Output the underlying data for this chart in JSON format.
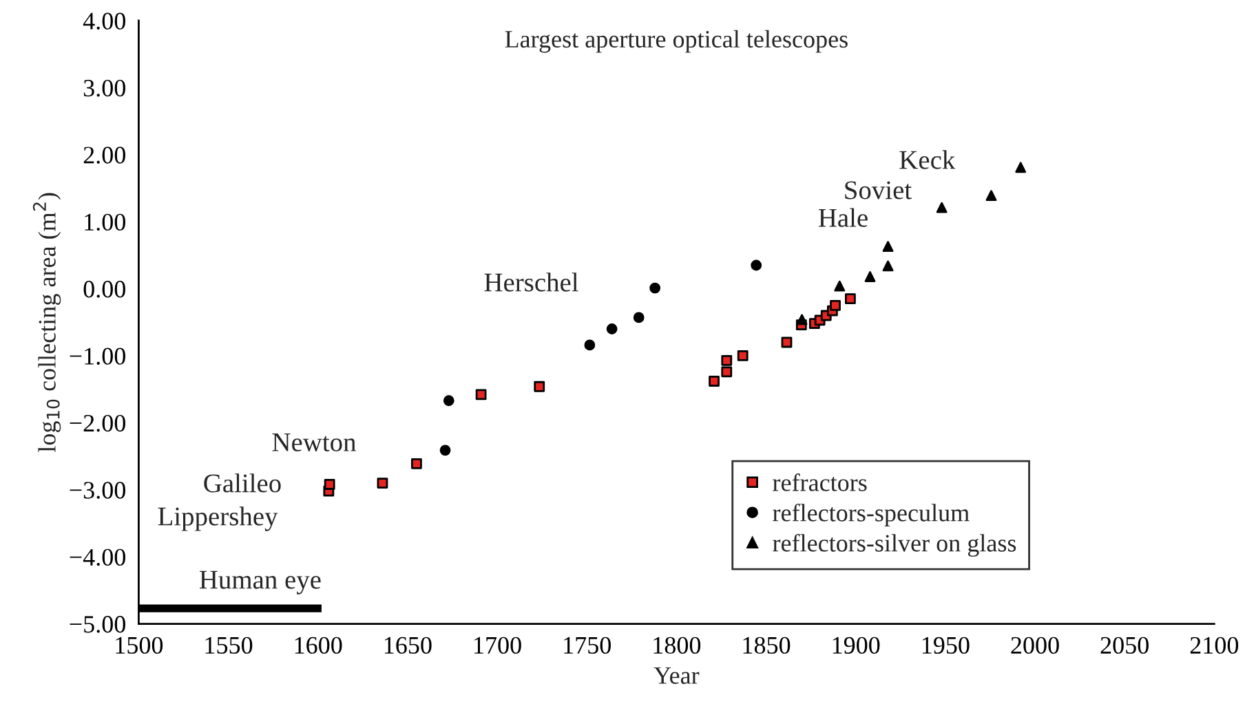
{
  "chart_data": {
    "type": "scatter",
    "title": "Largest aperture optical telescopes",
    "xlabel": "Year",
    "ylabel": "log$_{10}$ collecting area (m$^{2}$)",
    "xlim": [
      1500,
      2100
    ],
    "xticks": [
      1500,
      1550,
      1600,
      1650,
      1700,
      1750,
      1800,
      1850,
      1900,
      1950,
      2000,
      2050,
      2100
    ],
    "ylim": [
      -5,
      4
    ],
    "yticks": [
      {
        "value": 4,
        "label": "4.00"
      },
      {
        "value": 3,
        "label": "3.00"
      },
      {
        "value": 2,
        "label": "2.00"
      },
      {
        "value": 1,
        "label": "1.00"
      },
      {
        "value": 0,
        "label": "0.00"
      },
      {
        "value": -1,
        "label": "−1.00"
      },
      {
        "value": -2,
        "label": "−2.00"
      },
      {
        "value": -3,
        "label": "−3.00"
      },
      {
        "value": -4,
        "label": "−4.00"
      },
      {
        "value": -5,
        "label": "−5.00"
      }
    ],
    "grid": false,
    "legend": "bottom",
    "series": [
      {
        "name": "refractors",
        "color": "#e52521",
        "marker": "square",
        "x": [
          1606,
          1606.5,
          1636,
          1655,
          1691,
          1723.5,
          1821,
          1828,
          1828,
          1837,
          1861.5,
          1869.7,
          1877,
          1880,
          1883.5,
          1887,
          1888.6,
          1897
        ],
        "values": [
          -3.02,
          -2.92,
          -2.9,
          -2.61,
          -1.58,
          -1.46,
          -1.38,
          -1.24,
          -1.07,
          -1.0,
          -0.8,
          -0.54,
          -0.52,
          -0.47,
          -0.4,
          -0.33,
          -0.25,
          -0.15
        ]
      },
      {
        "name": "reflectors-speculum",
        "color": "#000000",
        "marker": "circle",
        "x": [
          1671,
          1673,
          1751.6,
          1764,
          1779,
          1788,
          1844.5
        ],
        "values": [
          -2.41,
          -1.67,
          -0.84,
          -0.6,
          -0.43,
          0.01,
          0.35
        ]
      },
      {
        "name": "reflectors-silver on glass",
        "color": "#000000",
        "marker": "triangle",
        "x": [
          1870,
          1891,
          1908,
          1918,
          1918,
          1948,
          1975.6,
          1992
        ],
        "values": [
          -0.46,
          0.04,
          0.18,
          0.34,
          0.63,
          1.21,
          1.39,
          1.81
        ]
      },
      {
        "type": "line",
        "color": "#000000",
        "x": [
          1500,
          1602
        ],
        "values": [
          -4.77,
          -4.77
        ]
      }
    ],
    "annotations": [
      "Lippershey",
      "Galileo",
      "Newton",
      "Herschel",
      "Hale",
      "Soviet",
      "Keck",
      "Human eye"
    ]
  }
}
